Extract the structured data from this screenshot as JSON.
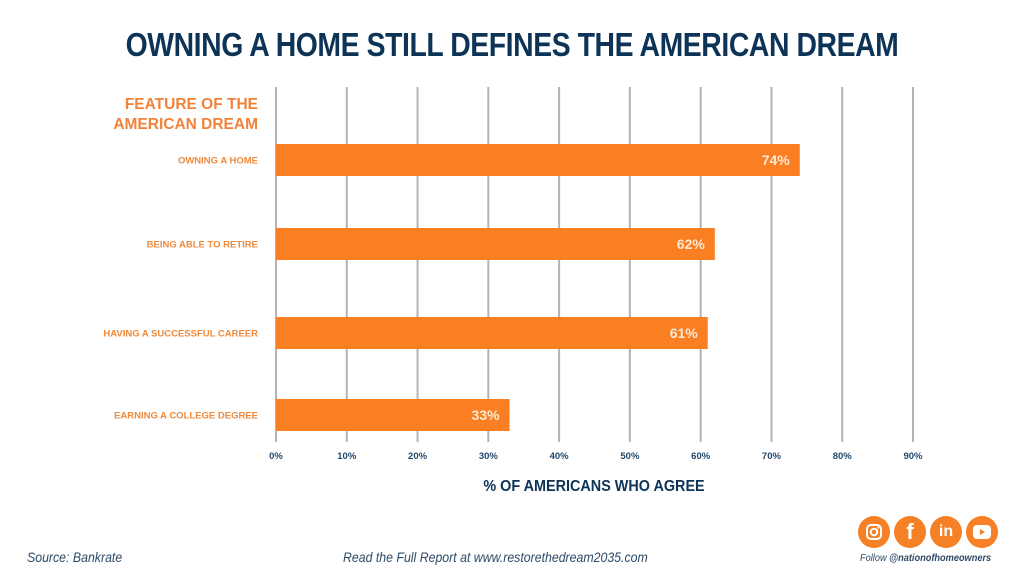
{
  "title": "OWNING A HOME STILL DEFINES THE AMERICAN DREAM",
  "feature_heading": [
    "FEATURE OF THE",
    "AMERICAN DREAM"
  ],
  "chart_data": {
    "type": "bar",
    "orientation": "horizontal",
    "title": "OWNING A HOME STILL DEFINES THE AMERICAN DREAM",
    "ylabel": "FEATURE OF THE AMERICAN DREAM",
    "xlabel": "% OF AMERICANS WHO AGREE",
    "categories": [
      "OWNING A HOME",
      "BEING ABLE TO RETIRE",
      "HAVING A SUCCESSFUL CAREER",
      "EARNING A COLLEGE DEGREE"
    ],
    "values": [
      74,
      62,
      61,
      33
    ],
    "value_labels": [
      "74%",
      "62%",
      "61%",
      "33%"
    ],
    "xlim": [
      0,
      90
    ],
    "xticks": [
      0,
      10,
      20,
      30,
      40,
      50,
      60,
      70,
      80,
      90
    ],
    "xtick_labels": [
      "0%",
      "10%",
      "20%",
      "30%",
      "40%",
      "50%",
      "60%",
      "70%",
      "80%",
      "90%"
    ],
    "grid": true,
    "bar_color": "#f97f22",
    "grid_color": "#b3b3b3"
  },
  "footer": {
    "source": "Source: Bankrate",
    "report": "Read the Full Report at www.restorethedream2035.com",
    "follow_prefix": "Follow ",
    "follow_handle": "@nationofhomeowners"
  },
  "socials": [
    {
      "name": "instagram",
      "glyph": "◎"
    },
    {
      "name": "facebook",
      "glyph": "f"
    },
    {
      "name": "linkedin",
      "glyph": "in"
    },
    {
      "name": "youtube",
      "glyph": "▶"
    }
  ],
  "colors": {
    "title": "#0d3356",
    "accent": "#f58025"
  }
}
